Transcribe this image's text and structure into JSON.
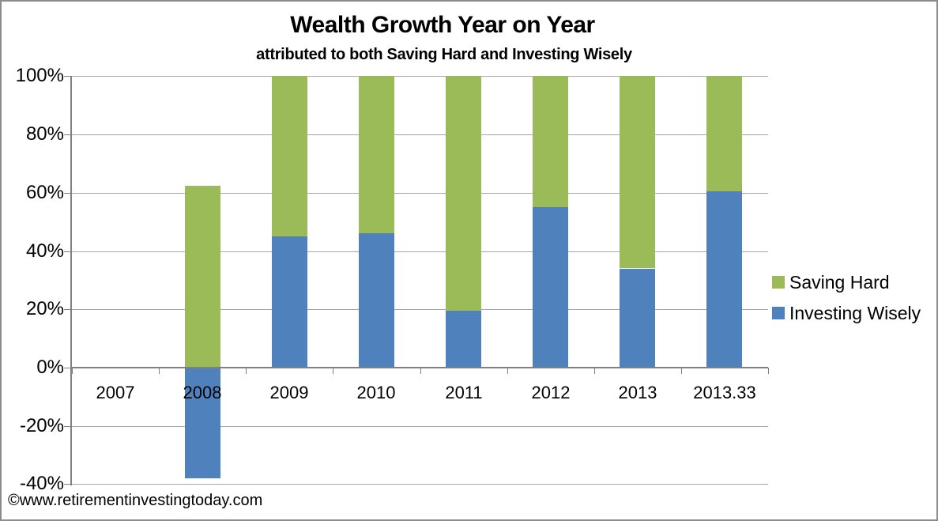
{
  "chart_data": {
    "type": "bar",
    "variant": "stacked-column",
    "title": "Wealth Growth Year on Year",
    "subtitle": "attributed to both Saving Hard and Investing Wisely",
    "watermark": "©www.retirementinvestingtoday.com",
    "categories": [
      "2007",
      "2008",
      "2009",
      "2010",
      "2011",
      "2012",
      "2013",
      "2013.33"
    ],
    "series": [
      {
        "name": "Saving Hard",
        "color": "#9BBB59",
        "values": [
          0,
          62.5,
          55,
          54,
          80.5,
          45,
          66,
          39.5
        ]
      },
      {
        "name": "Investing Wisely",
        "color": "#4F81BD",
        "values": [
          0,
          -38,
          45,
          46,
          19.5,
          55,
          34,
          60.5
        ]
      }
    ],
    "stacking": "Investing Wisely is stacked from the zero line, Saving Hard stacked above it; negative values extend below zero",
    "ylim": [
      -40,
      100
    ],
    "yticks": [
      {
        "value": 100,
        "label": "100%"
      },
      {
        "value": 80,
        "label": "80%"
      },
      {
        "value": 60,
        "label": "60%"
      },
      {
        "value": 40,
        "label": "40%"
      },
      {
        "value": 20,
        "label": "20%"
      },
      {
        "value": 0,
        "label": "0%"
      },
      {
        "value": -20,
        "label": "-20%"
      },
      {
        "value": -40,
        "label": "-40%"
      }
    ],
    "grid": true,
    "legend_position": "right",
    "colors": {
      "grid": "#A6A6A6",
      "axis": "#808080",
      "text": "#000000",
      "background": "#FFFFFF",
      "border": "#8C8C8C"
    }
  }
}
